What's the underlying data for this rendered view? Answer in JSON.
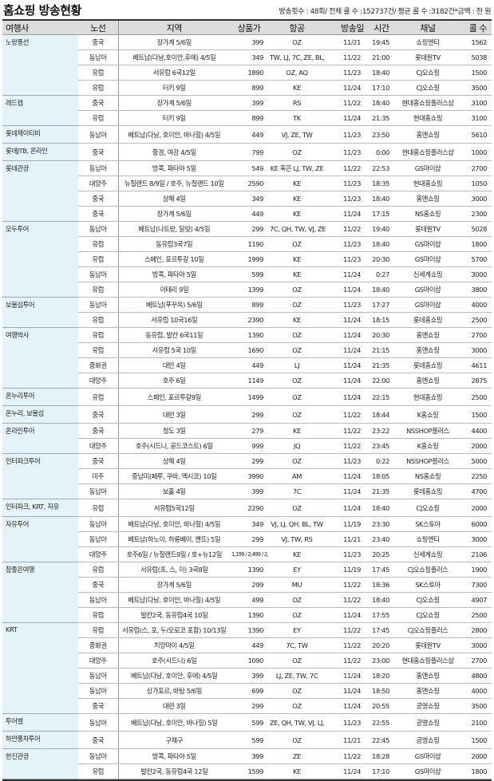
{
  "header": {
    "title": "홈쇼핑 방송현황",
    "summary": "방송횟수 : 48회/ 전체 콜 수 :152737건/ 평균 콜 수 :3182건*금액 : 천 원"
  },
  "table": {
    "columns": [
      "여행사",
      "노선",
      "지역",
      "상품가",
      "항공",
      "방송일",
      "시간",
      "채널",
      "콜 수"
    ],
    "groups": [
      {
        "agency": "노랑풍선",
        "rows": [
          {
            "route": "중국",
            "region": "장가계 5/6일",
            "price": "399",
            "airline": "OZ",
            "date": "11/21",
            "time": "19:45",
            "channel": "쇼핑엔티",
            "calls": "1562"
          },
          {
            "route": "동남아",
            "region": "베트남(다낭,호이안,후에) 4/5일",
            "price": "349",
            "airline": "TW, LJ, 7C, ZE, BL, RS",
            "date": "11/22",
            "time": "21:00",
            "channel": "롯데원TV",
            "calls": "5038"
          },
          {
            "route": "유럽",
            "region": "서유럽 6국12일",
            "price": "1890",
            "airline": "OZ, AQ",
            "date": "11/23",
            "time": "18:40",
            "channel": "CJ오쇼핑",
            "calls": "1500"
          },
          {
            "route": "유럽",
            "region": "터키 9일",
            "price": "899",
            "airline": "KE",
            "date": "11/24",
            "time": "17:10",
            "channel": "CJ오쇼핑",
            "calls": "3500"
          }
        ]
      },
      {
        "agency": "레드캡",
        "rows": [
          {
            "route": "중국",
            "region": "장가계 5/6일",
            "price": "399",
            "airline": "RS",
            "date": "11/22",
            "time": "18:40",
            "channel": "현대홈쇼핑플러스샵",
            "calls": "3100"
          },
          {
            "route": "유럽",
            "region": "터키 9일",
            "price": "899",
            "airline": "TK",
            "date": "11/24",
            "time": "21:35",
            "channel": "현대홈쇼핑",
            "calls": "3100"
          }
        ]
      },
      {
        "agency": "롯데제이티비",
        "rows": [
          {
            "route": "동남아",
            "region": "베트남(다낭, 호이안, 바나힐) 4/5일",
            "price": "449",
            "airline": "VJ, ZE, TW",
            "date": "11/23",
            "time": "23:50",
            "channel": "홈앤쇼핑",
            "calls": "5610"
          }
        ]
      },
      {
        "agency": "롯데JTB, 온라인",
        "rows": [
          {
            "route": "중국",
            "region": "중경, 여강 4/5일",
            "price": "799",
            "airline": "OZ",
            "date": "11/23",
            "time": "0:00",
            "channel": "현대홈쇼핑플러스샵",
            "calls": "1000"
          }
        ]
      },
      {
        "agency": "롯데관광",
        "rows": [
          {
            "route": "동남아",
            "region": "방콕, 파타야 5일",
            "price": "549",
            "airline": "KE 혹은 LJ, TW, ZE",
            "date": "11/22",
            "time": "22:53",
            "channel": "GS마이샵",
            "calls": "2700"
          },
          {
            "route": "대양주",
            "region": "뉴질랜드 8/9일 / 호주, 뉴질랜드 10일",
            "price": "2590",
            "airline": "KE",
            "date": "11/23",
            "time": "18:35",
            "channel": "현대홈쇼핑",
            "calls": "1050"
          },
          {
            "route": "중국",
            "region": "상해 4일",
            "price": "349",
            "airline": "KE",
            "date": "11/23",
            "time": "18:40",
            "channel": "홈앤쇼핑",
            "calls": "3000"
          },
          {
            "route": "중국",
            "region": "장가계 5/6일",
            "price": "449",
            "airline": "KE",
            "date": "11/24",
            "time": "17:15",
            "channel": "NS홈쇼핑",
            "calls": "2300"
          }
        ]
      },
      {
        "agency": "모두투어",
        "rows": [
          {
            "route": "동남아",
            "region": "베트남(나트랑, 달랏) 4/5일",
            "price": "299",
            "airline": "7C, QH, TW, VJ, ZE, RS",
            "date": "11/22",
            "time": "19:40",
            "channel": "롯데원TV",
            "calls": "5028"
          },
          {
            "route": "유럽",
            "region": "동유럽3국7일",
            "price": "1190",
            "airline": "OZ",
            "date": "11/23",
            "time": "18:40",
            "channel": "GS마이샵",
            "calls": "1800"
          },
          {
            "route": "유럽",
            "region": "스페인, 포르투갈 10일",
            "price": "1999",
            "airline": "KE",
            "date": "11/23",
            "time": "20:30",
            "channel": "GS마이샵",
            "calls": "5700"
          },
          {
            "route": "동남아",
            "region": "방콕, 파타야 5일",
            "price": "599",
            "airline": "KE",
            "date": "11/24",
            "time": "0:27",
            "channel": "신세계쇼핑",
            "calls": "3000"
          },
          {
            "route": "유럽",
            "region": "이태리 9일",
            "price": "1399",
            "airline": "OZ",
            "date": "11/24",
            "time": "18:40",
            "channel": "GS마이샵",
            "calls": "3800"
          }
        ]
      },
      {
        "agency": "보물섬투어",
        "rows": [
          {
            "route": "동남아",
            "region": "베트남(푸꾸옥) 5/6일",
            "price": "899",
            "airline": "OZ",
            "date": "11/23",
            "time": "17:27",
            "channel": "GS마이샵",
            "calls": "4000"
          },
          {
            "route": "유럽",
            "region": "서유럽 10국16일",
            "price": "2390",
            "airline": "KE",
            "date": "11/24",
            "time": "18:15",
            "channel": "롯데홈쇼핑",
            "calls": "2500"
          }
        ]
      },
      {
        "agency": "여행박사",
        "rows": [
          {
            "route": "유럽",
            "region": "동유럽, 발칸 6국11일",
            "price": "1390",
            "airline": "OZ",
            "date": "11/24",
            "time": "20:30",
            "channel": "홈앤쇼핑",
            "calls": "2700"
          },
          {
            "route": "유럽",
            "region": "서유럽 5국 10일",
            "price": "1690",
            "airline": "OZ",
            "date": "11/24",
            "time": "21:15",
            "channel": "홈앤쇼핑",
            "calls": "3000"
          },
          {
            "route": "중화권",
            "region": "대만 4일",
            "price": "449",
            "airline": "LJ",
            "date": "11/24",
            "time": "21:35",
            "channel": "롯데홈쇼핑",
            "calls": "4611"
          },
          {
            "route": "대양주",
            "region": "호주 6일",
            "price": "1149",
            "airline": "OZ",
            "date": "11/24",
            "time": "22:00",
            "channel": "홈앤쇼핑",
            "calls": "2875"
          }
        ]
      },
      {
        "agency": "온누리투어",
        "rows": [
          {
            "route": "유럽",
            "region": "스페인, 포르투갈9일",
            "price": "1499",
            "airline": "OZ",
            "date": "11/24",
            "time": "22:15",
            "channel": "현대홈쇼핑",
            "calls": "2500"
          }
        ]
      },
      {
        "agency": "온누리, 보물섬",
        "rows": [
          {
            "route": "중국",
            "region": "대련 3일",
            "price": "299",
            "airline": "OZ",
            "date": "11/22",
            "time": "18:44",
            "channel": "K홈쇼핑",
            "calls": "1500"
          }
        ]
      },
      {
        "agency": "온라인투어",
        "rows": [
          {
            "route": "중국",
            "region": "청도 3일",
            "price": "279",
            "airline": "KE",
            "date": "11/22",
            "time": "23:22",
            "channel": "NSSHOP플러스",
            "calls": "4400"
          },
          {
            "route": "대양주",
            "region": "호주(시드니, 골드코스트) 6일",
            "price": "999",
            "airline": "JQ",
            "date": "11/22",
            "time": "23:45",
            "channel": "K홈쇼핑",
            "calls": "2000"
          }
        ]
      },
      {
        "agency": "인터파크투어",
        "rows": [
          {
            "route": "중국",
            "region": "상해 4일",
            "price": "299",
            "airline": "OZ",
            "date": "11/23",
            "time": "0:22",
            "channel": "NSSHOP플러스",
            "calls": "5000"
          },
          {
            "route": "미주",
            "region": "중남미(페루, 쿠바, 멕시코) 10일",
            "price": "3990",
            "airline": "AM",
            "date": "11/24",
            "time": "18:05",
            "channel": "NS홈쇼핑",
            "calls": "2250"
          },
          {
            "route": "동남아",
            "region": "보홀 4일",
            "price": "399",
            "airline": "7C",
            "date": "11/24",
            "time": "21:35",
            "channel": "롯데홈쇼핑",
            "calls": "4700"
          }
        ]
      },
      {
        "agency": "인터파크, KRT, 자유",
        "rows": [
          {
            "route": "유럽",
            "region": "서유럽5국12일",
            "price": "2290",
            "airline": "OZ",
            "date": "11/24",
            "time": "18:40",
            "channel": "CJ오쇼핑",
            "calls": "2000"
          }
        ]
      },
      {
        "agency": "자유투어",
        "rows": [
          {
            "route": "동남아",
            "region": "베트남(다낭, 호이안, 바나힐) 4/5일",
            "price": "349",
            "airline": "VJ, LJ, QH, BL, TW",
            "date": "11/19",
            "time": "23:30",
            "channel": "SK스토아",
            "calls": "6000"
          },
          {
            "route": "동남아",
            "region": "베트남(하노이, 하롱베이, 옌뜨) 5일",
            "price": "299",
            "airline": "VJ, TW, RS",
            "date": "11/21",
            "time": "23:40",
            "channel": "쇼핑엔티",
            "calls": "3000"
          },
          {
            "route": "대양주",
            "region": "호주6일 / 뉴질랜드9일 / 호+뉴12일",
            "price": "1,199 / 2,499 / 2,699",
            "price_small": true,
            "airline": "KE",
            "date": "11/23",
            "time": "20:25",
            "channel": "신세계쇼핑",
            "calls": "2106"
          }
        ]
      },
      {
        "agency": "참좋은여행",
        "rows": [
          {
            "route": "유럽",
            "region": "서유럽(프, 스, 이) 3국8일",
            "price": "1390",
            "airline": "EY",
            "date": "11/19",
            "time": "17:45",
            "channel": "CJ오쇼핑플러스",
            "calls": "1900"
          },
          {
            "route": "중국",
            "region": "장가계 5/6일",
            "price": "299",
            "airline": "MU",
            "date": "11/22",
            "time": "18:36",
            "channel": "SK스토아",
            "calls": "7300"
          },
          {
            "route": "동남아",
            "region": "베트남(다낭, 호이안, 바나힐) 4/5일",
            "price": "499",
            "airline": "OZ",
            "date": "11/22",
            "time": "18:40",
            "channel": "CJ오쇼핑",
            "calls": "4907"
          },
          {
            "route": "유럽",
            "region": "발칸2국, 동유럽4국 10일",
            "price": "1390",
            "airline": "OZ",
            "date": "11/24",
            "time": "17:55",
            "channel": "CJ오쇼핑",
            "calls": "2500"
          }
        ]
      },
      {
        "agency": "KRT",
        "rows": [
          {
            "route": "유럽",
            "region": "서유럽(스, 포, 두/모로코 포함) 10/13일",
            "price": "1390",
            "airline": "EY",
            "date": "11/22",
            "time": "17:45",
            "channel": "CJ오쇼핑플러스",
            "calls": "2800"
          },
          {
            "route": "중화권",
            "region": "치앙마이 4/5일",
            "price": "449",
            "airline": "7C, TW",
            "date": "11/22",
            "time": "20:20",
            "channel": "롯데원TV",
            "calls": "3000"
          },
          {
            "route": "대양주",
            "region": "호주(시드니) 6일",
            "price": "1090",
            "airline": "OZ",
            "date": "11/22",
            "time": "23:00",
            "channel": "현대홈쇼핑플러스샵",
            "calls": "2700"
          },
          {
            "route": "동남아",
            "region": "베트남(다낭, 호이안, 후에) 4/5일",
            "price": "399",
            "airline": "LJ, ZE, TW, 7C",
            "date": "11/24",
            "time": "18:20",
            "channel": "홈앤쇼핑",
            "calls": "4800"
          },
          {
            "route": "동남아",
            "region": "싱가포르, 바탐 5/6일",
            "price": "699",
            "airline": "OZ",
            "date": "11/24",
            "time": "18:50",
            "channel": "홈앤쇼핑",
            "calls": "4000"
          },
          {
            "route": "중국",
            "region": "대련 3일",
            "price": "299",
            "airline": "OZ",
            "date": "11/24",
            "time": "20:55",
            "channel": "공영쇼핑",
            "calls": "3500"
          }
        ]
      },
      {
        "agency": "투어벨",
        "rows": [
          {
            "route": "동남아",
            "region": "베트남(다낭, 호이안, 바나힐) 5일",
            "price": "599",
            "airline": "ZE, QH, TW, VJ, LJ, BX",
            "date": "11/23",
            "time": "22:55",
            "channel": "공영쇼핑",
            "calls": "2100"
          }
        ]
      },
      {
        "agency": "하얀풍차투어",
        "rows": [
          {
            "route": "중국",
            "region": "구채구",
            "price": "599",
            "airline": "OZ",
            "date": "11/21",
            "time": "22:45",
            "channel": "공영쇼핑",
            "calls": "1500"
          }
        ]
      },
      {
        "agency": "한진관광",
        "rows": [
          {
            "route": "동남아",
            "region": "방콕, 파타야 5일",
            "price": "399",
            "airline": "ZE",
            "date": "11/22",
            "time": "18:28",
            "channel": "GS마이샵",
            "calls": "2000"
          },
          {
            "route": "유럽",
            "region": "발칸2국, 동유럽4국 12일",
            "price": "1599",
            "airline": "KE",
            "date": "11/24",
            "time": "17:10",
            "channel": "GS마이샵",
            "calls": "1800"
          }
        ]
      }
    ]
  },
  "colors": {
    "agency_bg": "#e4f3f7",
    "header_bg": "#dcdcdc",
    "rule": "#333333"
  }
}
